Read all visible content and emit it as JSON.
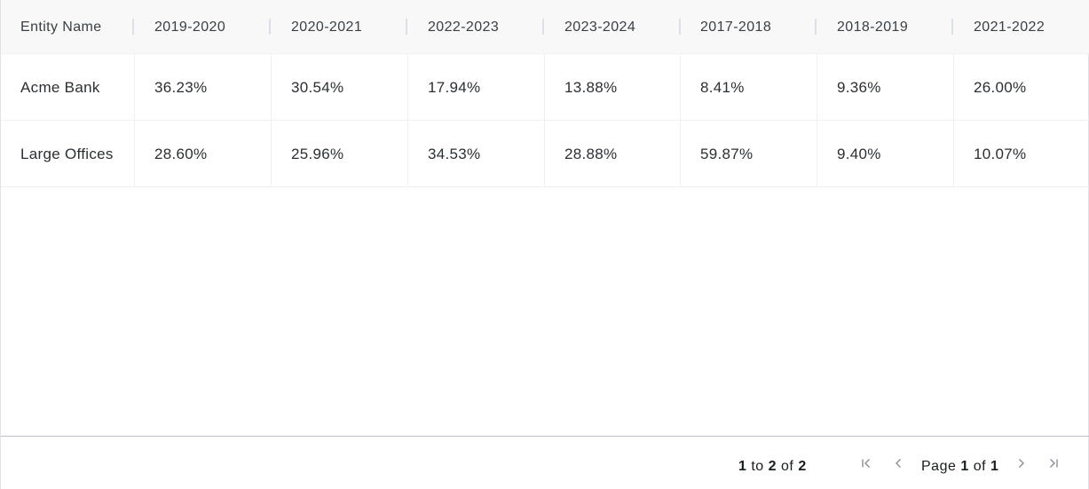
{
  "table": {
    "columns": [
      "Entity Name",
      "2019-2020",
      "2020-2021",
      "2022-2023",
      "2023-2024",
      "2017-2018",
      "2018-2019",
      "2021-2022"
    ],
    "rows": [
      [
        "Acme Bank",
        "36.23%",
        "30.54%",
        "17.94%",
        "13.88%",
        "8.41%",
        "9.36%",
        "26.00%"
      ],
      [
        "Large Offices",
        "28.60%",
        "25.96%",
        "34.53%",
        "28.88%",
        "59.87%",
        "9.40%",
        "10.07%"
      ]
    ]
  },
  "pagination": {
    "row_from": "1",
    "to_word": "to",
    "row_to": "2",
    "of_word": "of",
    "row_count": "2",
    "page_word": "Page",
    "current_page": "1",
    "total_pages": "1",
    "icons": [
      "first-page-icon",
      "previous-page-icon",
      "next-page-icon",
      "last-page-icon"
    ]
  },
  "colors": {
    "header_bg": "#f8f8f8",
    "border": "#dde2eb",
    "text": "#181d1f",
    "icon_gray": "#8a8f96"
  }
}
